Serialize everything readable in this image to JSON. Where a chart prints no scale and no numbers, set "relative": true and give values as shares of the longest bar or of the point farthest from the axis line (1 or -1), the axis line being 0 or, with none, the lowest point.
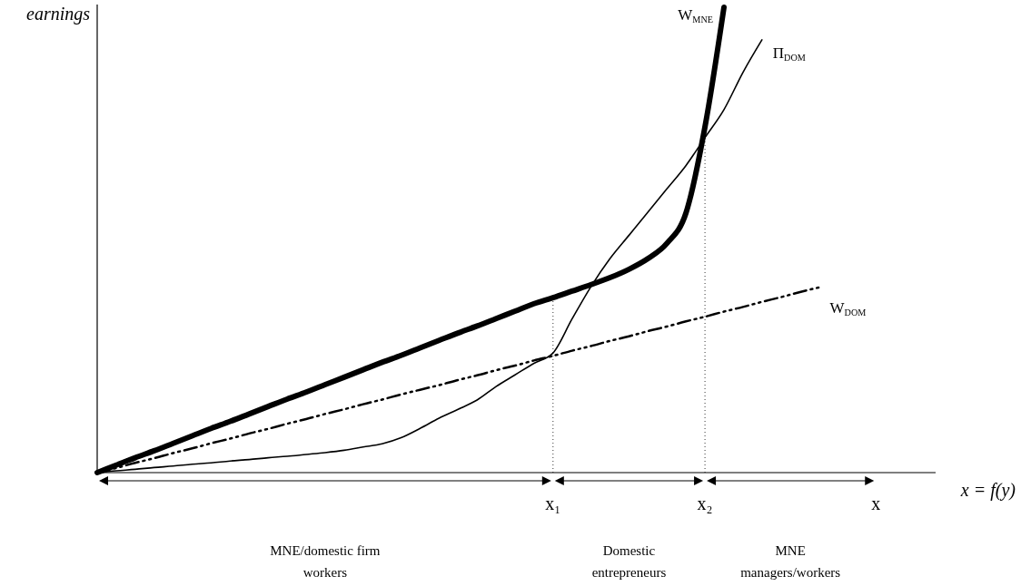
{
  "chart_data": {
    "type": "line",
    "relative": true,
    "ylabel": "earnings",
    "xlabel": "x = f(y)",
    "tick_labels": "x",
    "categories": [
      null,
      null,
      null,
      null,
      null,
      null,
      null,
      null,
      null,
      null,
      null,
      null,
      null,
      null,
      null,
      null,
      null,
      null,
      null,
      null,
      null,
      null,
      null,
      null,
      "x₁",
      null,
      null,
      null,
      null,
      null,
      null,
      null,
      "x₂",
      null,
      null,
      null,
      null,
      null,
      null,
      null,
      null,
      "x",
      null,
      null,
      null
    ],
    "series": [
      {
        "name": "W$_{MNE}$",
        "color": "#000000",
        "line_style": "solid",
        "values": [
          0,
          0.016,
          0.032,
          0.047,
          0.063,
          0.079,
          0.095,
          0.11,
          0.126,
          0.142,
          0.158,
          0.173,
          0.189,
          0.205,
          0.221,
          0.237,
          0.252,
          0.268,
          0.284,
          0.3,
          0.315,
          0.331,
          0.347,
          0.363,
          0.376,
          0.39,
          0.404,
          0.419,
          0.437,
          0.46,
          0.493,
          0.558,
          0.743,
          1,
          null,
          null,
          null,
          null,
          null,
          null,
          null,
          null,
          null,
          null,
          null
        ]
      },
      {
        "name": "Π$_{DOM}$",
        "color": "#000000",
        "line_style": "solid",
        "values": [
          0,
          0.004,
          0.007,
          0.011,
          0.014,
          0.018,
          0.021,
          0.025,
          0.028,
          0.032,
          0.035,
          0.039,
          0.043,
          0.048,
          0.055,
          0.062,
          0.075,
          0.095,
          0.117,
          0.136,
          0.156,
          0.185,
          0.21,
          0.235,
          0.257,
          0.33,
          0.4,
          0.46,
          0.51,
          0.56,
          0.61,
          0.66,
          0.72,
          0.78,
          0.86,
          0.93,
          null,
          null,
          null,
          null,
          null,
          null,
          null,
          null,
          null
        ]
      },
      {
        "name": "W$_{DOM}$",
        "color": "#000000",
        "line_style": "dashdot",
        "values": [
          0,
          0.01,
          0.021,
          0.031,
          0.042,
          0.052,
          0.063,
          0.073,
          0.084,
          0.094,
          0.105,
          0.115,
          0.126,
          0.136,
          0.147,
          0.157,
          0.168,
          0.178,
          0.188,
          0.199,
          0.209,
          0.22,
          0.23,
          0.241,
          0.251,
          0.262,
          0.272,
          0.283,
          0.293,
          0.304,
          0.314,
          0.325,
          0.335,
          0.346,
          0.356,
          0.367,
          0.377,
          0.388,
          0.398,
          null,
          null,
          null,
          null,
          null,
          null
        ]
      }
    ],
    "ref_lines": [
      {
        "axis": "x",
        "value": "x₁",
        "line_style": "dotted"
      },
      {
        "axis": "x",
        "value": "x₂",
        "line_style": "dotted"
      }
    ],
    "annotations": [
      "MNE/domestic firm\nworkers",
      "Domestic\nentrepreneurs",
      "MNE\nmanagers/workers"
    ]
  }
}
